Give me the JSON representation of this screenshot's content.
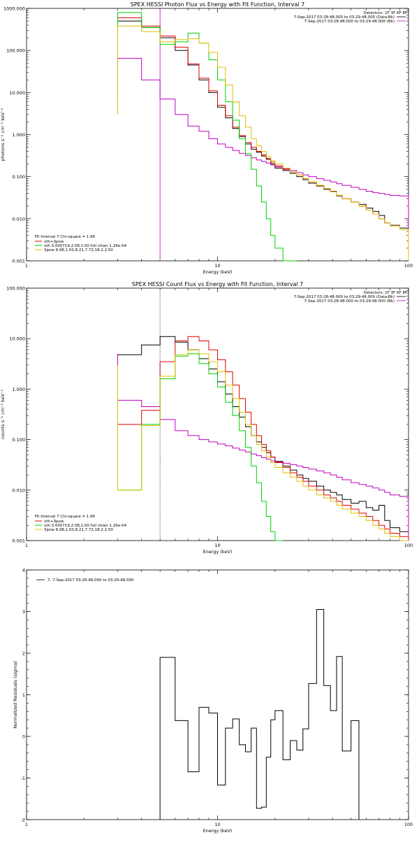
{
  "chart_data": [
    {
      "type": "line",
      "step": true,
      "title": "SPEX HESSI Photon Flux vs Energy with Fit Function, Interval 7",
      "xlabel": "Energy (keV)",
      "ylabel": "photons s⁻¹ cm⁻² keV⁻¹",
      "xscale": "log",
      "yscale": "log",
      "xlim": [
        1,
        100
      ],
      "ylim": [
        0.001,
        1000
      ],
      "x_ticks": [
        {
          "v": 1,
          "label": "1"
        },
        {
          "v": 10,
          "label": "10"
        },
        {
          "v": 100,
          "label": "100"
        }
      ],
      "y_ticks": [
        {
          "v": 0.001,
          "label": "0.001"
        },
        {
          "v": 0.01,
          "label": "0.010"
        },
        {
          "v": 0.1,
          "label": "0.100"
        },
        {
          "v": 1,
          "label": "1.000"
        },
        {
          "v": 10,
          "label": "10.000"
        },
        {
          "v": 100,
          "label": "100.000"
        },
        {
          "v": 1000,
          "label": "1000.000"
        }
      ],
      "header_right": [
        "Detectors: 1F 3F 6F 8F",
        "7-Sep-2017 03:28:48.000 to 03:29:48.000 (Data-Bk)",
        "7-Sep-2017 03:28:48.000 to 03:29:48.000 (Bk)"
      ],
      "legend_title": "Fit Interval 7   Chi-square = 1.66",
      "vline": {
        "x": 5.0,
        "color": "#c000c0"
      },
      "edges": [
        3,
        4,
        5,
        6,
        7,
        8,
        9,
        10,
        11,
        12,
        13,
        14,
        15,
        16,
        17,
        18,
        19,
        20,
        22,
        24,
        26,
        28,
        30,
        33,
        36,
        39,
        42,
        45,
        50,
        55,
        60,
        65,
        70,
        75,
        80,
        90,
        100
      ],
      "series": [
        {
          "name": "Data-Bk",
          "color": "#000000",
          "y_start": 5,
          "values": [
            500,
            350,
            200,
            100,
            45,
            20,
            10,
            4.5,
            2.5,
            1.4,
            0.9,
            0.6,
            0.45,
            0.38,
            0.31,
            0.26,
            0.2,
            0.16,
            0.14,
            0.12,
            0.1,
            0.085,
            0.07,
            0.06,
            0.05,
            0.045,
            0.035,
            0.03,
            0.025,
            0.022,
            0.018,
            0.015,
            0.012,
            0.008,
            0.007,
            0.006
          ]
        },
        {
          "name": "Bk",
          "color": "#c000c0",
          "y_start": 5,
          "values": [
            65,
            20,
            7,
            3,
            1.6,
            1.2,
            0.8,
            0.6,
            0.5,
            0.42,
            0.36,
            0.32,
            0.28,
            0.25,
            0.23,
            0.21,
            0.19,
            0.17,
            0.155,
            0.14,
            0.125,
            0.11,
            0.1,
            0.09,
            0.082,
            0.075,
            0.068,
            0.062,
            0.056,
            0.05,
            0.045,
            0.042,
            0.04,
            0.038,
            0.036,
            0.035
          ]
        },
        {
          "name": "vth+3pow",
          "color": "#e00000",
          "y_start": 4,
          "values": [
            600,
            380,
            220,
            120,
            48,
            22,
            11,
            5,
            2.8,
            1.5,
            0.95,
            0.65,
            0.5,
            0.4,
            0.33,
            0.27,
            0.22,
            0.18,
            0.15,
            0.13,
            0.11,
            0.09,
            0.075,
            0.062,
            0.052,
            0.044,
            0.036,
            0.03,
            0.025,
            0.02,
            0.016,
            0.013,
            0.01,
            0.008,
            0.0068,
            0.0055
          ]
        },
        {
          "name": "vth 0.000719,2.08,1.00  full chian 1.26e-04",
          "label": "vth 0.000719,2.08,1.00  full chian 1.26e-04",
          "color": "#00d000",
          "y_start": 3,
          "values": [
            800,
            350,
            140,
            160,
            260,
            150,
            60,
            20,
            6,
            2.2,
            0.8,
            0.35,
            0.15,
            0.06,
            0.025,
            0.01,
            0.004,
            0.002,
            0.001,
            0.0008
          ]
        },
        {
          "name": "3pow 8.98,1.50,8.21,7.72,18.2,2.50",
          "label": "3pow 8.98,1.50,8.21,7.72,18.2,2.50",
          "color": "#e0c000",
          "y_start": 3,
          "values": [
            380,
            280,
            160,
            180,
            190,
            150,
            90,
            40,
            15,
            6,
            2.8,
            1.5,
            0.8,
            0.55,
            0.4,
            0.3,
            0.24,
            0.2,
            0.16,
            0.13,
            0.11,
            0.09,
            0.075,
            0.062,
            0.052,
            0.044,
            0.036,
            0.03,
            0.025,
            0.02,
            0.016,
            0.013,
            0.01,
            0.008,
            0.0068,
            0.0055
          ]
        }
      ]
    },
    {
      "type": "line",
      "step": true,
      "title": "SPEX HESSI Count Flux vs Energy with Fit Function, Interval 7",
      "xlabel": "Energy (keV)",
      "ylabel": "counts s⁻¹ cm⁻² keV⁻¹",
      "xscale": "log",
      "yscale": "log",
      "xlim": [
        1,
        100
      ],
      "ylim": [
        0.001,
        100
      ],
      "x_ticks": [
        {
          "v": 1,
          "label": "1"
        },
        {
          "v": 10,
          "label": "10"
        },
        {
          "v": 100,
          "label": "100"
        }
      ],
      "y_ticks": [
        {
          "v": 0.001,
          "label": "0.001"
        },
        {
          "v": 0.01,
          "label": "0.010"
        },
        {
          "v": 0.1,
          "label": "0.100"
        },
        {
          "v": 1,
          "label": "1.000"
        },
        {
          "v": 10,
          "label": "10.000"
        },
        {
          "v": 100,
          "label": "100.000"
        }
      ],
      "header_right": [
        "Detectors: 1F 3F 6F 8F",
        "7-Sep-2017 03:28:48.000 to 03:29:48.000 (Data-Bk)",
        "7-Sep-2017 03:28:48.000 to 03:29:48.000 (Bk)"
      ],
      "legend_title": "Fit Interval 7   Chi-square = 1.66",
      "vline": {
        "x": 5.0,
        "color": "#000000",
        "dotted": true
      },
      "edges": [
        3,
        4,
        5,
        6,
        7,
        8,
        9,
        10,
        11,
        12,
        13,
        14,
        15,
        16,
        17,
        18,
        19,
        20,
        22,
        24,
        26,
        28,
        30,
        33,
        36,
        39,
        42,
        45,
        50,
        55,
        60,
        65,
        70,
        75,
        80,
        90,
        100
      ],
      "series": [
        {
          "name": "Data-Bk",
          "color": "#000000",
          "y_start": 5,
          "values": [
            4.8,
            7.5,
            11,
            8.5,
            6,
            4,
            2.5,
            1.4,
            0.8,
            0.45,
            0.28,
            0.18,
            0.12,
            0.09,
            0.07,
            0.055,
            0.045,
            0.037,
            0.03,
            0.025,
            0.02,
            0.017,
            0.015,
            0.012,
            0.01,
            0.009,
            0.008,
            0.0065,
            0.0055,
            0.006,
            0.0045,
            0.004,
            0.005,
            0.0025,
            0.0018,
            0.0015
          ]
        },
        {
          "name": "Bk",
          "color": "#c000c0",
          "y_start": 5,
          "values": [
            0.6,
            0.45,
            0.25,
            0.15,
            0.12,
            0.1,
            0.09,
            0.082,
            0.075,
            0.068,
            0.062,
            0.057,
            0.052,
            0.048,
            0.044,
            0.041,
            0.038,
            0.036,
            0.034,
            0.032,
            0.03,
            0.028,
            0.026,
            0.024,
            0.022,
            0.02,
            0.018,
            0.016,
            0.014,
            0.013,
            0.012,
            0.011,
            0.01,
            0.009,
            0.008,
            0.0075
          ]
        },
        {
          "name": "vth+3pow",
          "color": "#e00000",
          "y_start": 3,
          "values": [
            0.2,
            0.38,
            3.5,
            9,
            11,
            9,
            6,
            3.8,
            2.2,
            1.2,
            0.65,
            0.35,
            0.2,
            0.12,
            0.08,
            0.06,
            0.045,
            0.035,
            0.028,
            0.022,
            0.018,
            0.015,
            0.012,
            0.01,
            0.008,
            0.007,
            0.006,
            0.005,
            0.0042,
            0.0035,
            0.003,
            0.0025,
            0.002,
            0.0017,
            0.0014,
            0.0012
          ]
        },
        {
          "name": "vth 0.000719,2.08,1.00  full chian 1.26e-04",
          "label": "vth 0.000719,2.08,1.00  full chian 1.26e-04",
          "color": "#00d000",
          "y_start": 3,
          "values": [
            0.01,
            0.2,
            1.6,
            4.5,
            5,
            3.2,
            2,
            1.1,
            0.55,
            0.3,
            0.15,
            0.07,
            0.03,
            0.014,
            0.006,
            0.003,
            0.0015,
            0.0008
          ]
        },
        {
          "name": "3pow 8.98,1.50,8.21,7.72,18.2,2.50",
          "label": "3pow 8.98,1.50,8.21,7.72,18.2,2.50",
          "color": "#e0c000",
          "y_start": 3,
          "values": [
            0.01,
            0.19,
            1.8,
            4.8,
            6,
            5,
            3.5,
            2.2,
            1.2,
            0.65,
            0.35,
            0.2,
            0.12,
            0.08,
            0.06,
            0.045,
            0.035,
            0.028,
            0.022,
            0.018,
            0.015,
            0.012,
            0.01,
            0.008,
            0.007,
            0.006,
            0.005,
            0.0042,
            0.0035,
            0.003,
            0.0025,
            0.002,
            0.0017,
            0.0014,
            0.0012,
            0.001
          ]
        }
      ]
    },
    {
      "type": "line",
      "step": true,
      "title": "",
      "xlabel": "Energy (keV)",
      "ylabel": "Normalized Residuals (sigma)",
      "xscale": "log",
      "yscale": "linear",
      "xlim": [
        1,
        100
      ],
      "ylim": [
        -2,
        4
      ],
      "x_ticks": [
        {
          "v": 1,
          "label": "1"
        },
        {
          "v": 10,
          "label": "10"
        },
        {
          "v": 100,
          "label": "100"
        }
      ],
      "y_ticks": [
        {
          "v": -2,
          "label": "-2"
        },
        {
          "v": -1,
          "label": "-1"
        },
        {
          "v": 0,
          "label": "0"
        },
        {
          "v": 1,
          "label": "1"
        },
        {
          "v": 2,
          "label": "2"
        },
        {
          "v": 3,
          "label": "3"
        },
        {
          "v": 4,
          "label": "4"
        }
      ],
      "legend_title": "7,  7-Sep-2017 03:28:48.000 to 03:29:48.000",
      "edges": [
        5,
        6,
        7,
        8,
        9,
        10,
        11,
        12,
        13,
        14,
        15,
        16,
        17,
        18,
        19,
        20,
        22,
        24,
        26,
        28,
        30,
        33,
        36,
        39,
        42,
        45,
        50,
        55,
        60,
        65,
        70,
        75,
        80,
        90,
        100
      ],
      "series": [
        {
          "name": "Residuals",
          "color": "#000000",
          "y_start": -2,
          "values": [
            1.9,
            0.38,
            -0.85,
            0.7,
            0.56,
            -1.17,
            0.2,
            0.42,
            -0.2,
            -0.37,
            0.2,
            -1.73,
            -1.7,
            -0.5,
            0.4,
            0.62,
            -0.56,
            -0.1,
            -0.33,
            0.18,
            1.27,
            3.05,
            1.22,
            0.62,
            1.92,
            -0.35,
            0.38
          ]
        }
      ]
    }
  ]
}
